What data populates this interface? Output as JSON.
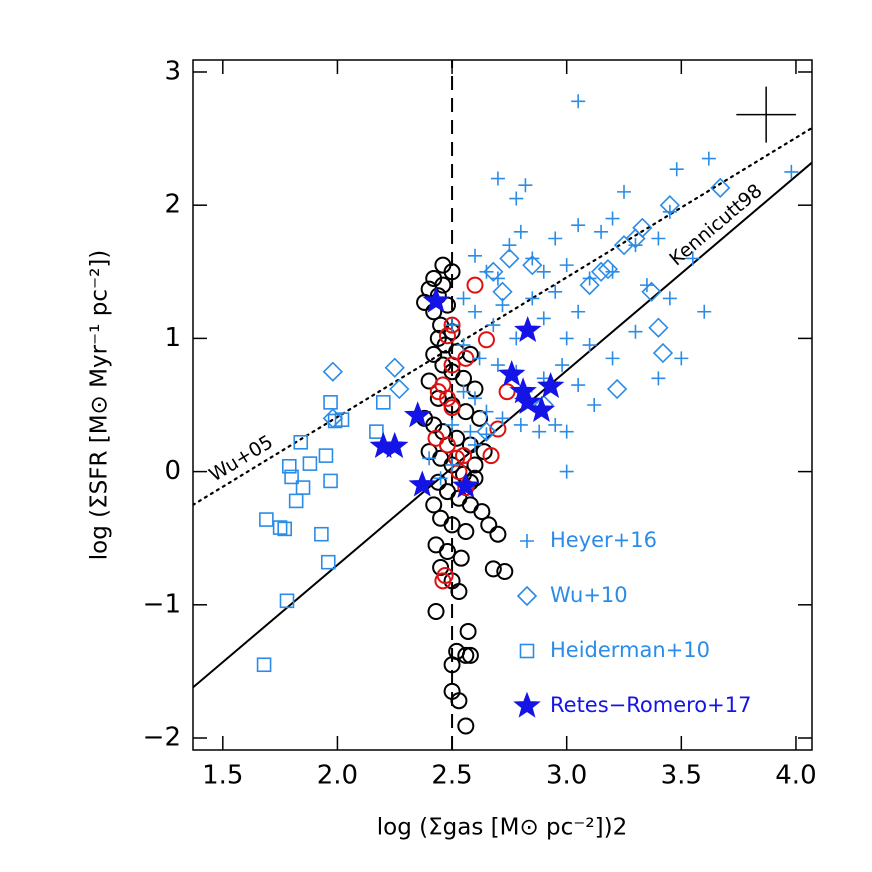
{
  "chart_data": {
    "type": "scatter",
    "x_label": "log (Σgas  [M⊙ pc⁻²])2",
    "y_label": "log (ΣSFR  [M⊙  Myr⁻¹  pc⁻²])",
    "xlim": [
      1.37,
      4.07
    ],
    "ylim": [
      -2.09,
      3.09
    ],
    "xticks": [
      {
        "value": 1.5,
        "label": "1.5"
      },
      {
        "value": 2.0,
        "label": "2.0"
      },
      {
        "value": 2.5,
        "label": "2.5"
      },
      {
        "value": 3.0,
        "label": "3.0"
      },
      {
        "value": 3.5,
        "label": "3.5"
      },
      {
        "value": 4.0,
        "label": "4.0"
      }
    ],
    "yticks": [
      {
        "value": -2,
        "label": "−2"
      },
      {
        "value": -1,
        "label": "−1"
      },
      0,
      1,
      2,
      3
    ],
    "legend": "lower right",
    "series": [
      {
        "name": "Heyer+16",
        "marker": "plus",
        "color": "#2a8ce8",
        "x": [
          3.05,
          2.7,
          2.78,
          2.82,
          3.48,
          3.62,
          3.98,
          3.25,
          3.2,
          3.45,
          3.05,
          3.15,
          3.4,
          3.55,
          3.3,
          2.6,
          2.65,
          2.7,
          2.75,
          2.8,
          2.85,
          2.9,
          2.95,
          3.0,
          3.1,
          3.2,
          3.35,
          3.45,
          3.6,
          2.55,
          2.6,
          2.68,
          2.72,
          2.78,
          2.85,
          2.9,
          2.95,
          3.0,
          3.05,
          3.1,
          3.2,
          3.3,
          3.4,
          3.5,
          2.5,
          2.55,
          2.62,
          2.7,
          2.78,
          2.82,
          2.9,
          2.98,
          3.05,
          3.12,
          2.55,
          2.6,
          2.65,
          2.72,
          2.8,
          2.88,
          2.95,
          3.0,
          2.5,
          2.58,
          2.65,
          2.4,
          2.5,
          2.6,
          2.45,
          3.0,
          2.55
        ],
        "values": [
          2.78,
          2.2,
          2.05,
          2.15,
          2.27,
          2.35,
          2.25,
          2.1,
          1.9,
          1.95,
          1.85,
          1.8,
          1.75,
          1.6,
          1.7,
          1.62,
          1.5,
          1.45,
          1.7,
          1.8,
          1.6,
          1.5,
          1.75,
          1.55,
          1.45,
          1.5,
          1.4,
          1.3,
          1.2,
          1.3,
          1.2,
          1.1,
          1.25,
          1.0,
          1.3,
          1.15,
          1.35,
          1.0,
          1.2,
          0.95,
          0.85,
          1.05,
          0.7,
          0.85,
          1.1,
          0.95,
          0.85,
          0.8,
          0.75,
          0.6,
          0.7,
          0.8,
          0.65,
          0.5,
          0.6,
          0.55,
          0.45,
          0.4,
          0.35,
          0.3,
          0.35,
          0.3,
          0.35,
          0.3,
          0.28,
          0.1,
          0.05,
          0.2,
          -0.05,
          0.0,
          -0.1
        ]
      },
      {
        "name": "Wu+10",
        "marker": "diamond",
        "color": "#2a8ce8",
        "x": [
          1.98,
          2.25,
          2.27,
          1.98,
          2.68,
          2.72,
          2.75,
          2.85,
          3.1,
          3.18,
          3.25,
          3.3,
          3.33,
          3.45,
          3.67,
          3.4,
          3.42,
          3.37,
          3.22,
          3.15,
          2.65,
          2.9
        ],
        "values": [
          0.75,
          0.78,
          0.62,
          0.4,
          1.5,
          1.35,
          1.6,
          1.55,
          1.4,
          1.52,
          1.7,
          1.75,
          1.83,
          2.0,
          2.13,
          1.08,
          0.89,
          1.35,
          0.62,
          1.5,
          0.3,
          0.5
        ]
      },
      {
        "name": "Heiderman+10",
        "marker": "square",
        "color": "#2a8ce8",
        "x": [
          1.68,
          1.69,
          1.75,
          1.77,
          1.78,
          1.79,
          1.8,
          1.82,
          1.84,
          1.85,
          1.88,
          1.93,
          1.95,
          1.96,
          1.97,
          1.97,
          1.99,
          2.02,
          2.17,
          2.2
        ],
        "values": [
          -1.45,
          -0.36,
          -0.42,
          -0.43,
          -0.97,
          0.04,
          -0.04,
          -0.22,
          0.22,
          -0.12,
          0.06,
          -0.47,
          0.12,
          -0.68,
          -0.07,
          0.52,
          0.38,
          0.39,
          0.3,
          0.52
        ]
      },
      {
        "name": "Retes−Romero+17",
        "marker": "star",
        "color": "#1414e6",
        "x": [
          2.43,
          2.35,
          2.2,
          2.25,
          2.37,
          2.56,
          2.83,
          2.76,
          2.81,
          2.83,
          2.93,
          2.89
        ],
        "values": [
          1.28,
          0.42,
          0.19,
          0.19,
          -0.1,
          -0.11,
          1.06,
          0.73,
          0.6,
          0.52,
          0.64,
          0.46
        ]
      },
      {
        "marker": "circle",
        "color": "#000000",
        "x": [
          2.46,
          2.5,
          2.42,
          2.46,
          2.4,
          2.44,
          2.38,
          2.48,
          2.42,
          2.45,
          2.5,
          2.44,
          2.47,
          2.52,
          2.58,
          2.42,
          2.46,
          2.5,
          2.55,
          2.6,
          2.4,
          2.44,
          2.5,
          2.56,
          2.62,
          2.38,
          2.42,
          2.46,
          2.52,
          2.58,
          2.64,
          2.4,
          2.45,
          2.5,
          2.55,
          2.6,
          2.44,
          2.48,
          2.53,
          2.58,
          2.63,
          2.42,
          2.45,
          2.5,
          2.56,
          2.66,
          2.7,
          2.43,
          2.48,
          2.54,
          2.68,
          2.73,
          2.45,
          2.5,
          2.53,
          2.43,
          2.57,
          2.52,
          2.56,
          2.5,
          2.5,
          2.53,
          2.56,
          2.58,
          2.6,
          2.58
        ],
        "values": [
          1.55,
          1.5,
          1.45,
          1.4,
          1.37,
          1.32,
          1.27,
          1.25,
          1.2,
          1.1,
          1.05,
          1.0,
          0.95,
          0.9,
          0.88,
          0.88,
          0.8,
          0.75,
          0.7,
          0.62,
          0.68,
          0.55,
          0.5,
          0.45,
          0.4,
          0.4,
          0.35,
          0.3,
          0.25,
          0.2,
          0.15,
          0.15,
          0.1,
          0.05,
          -0.02,
          -0.05,
          -0.08,
          -0.15,
          -0.2,
          -0.25,
          -0.3,
          -0.25,
          -0.35,
          -0.4,
          -0.45,
          -0.4,
          -0.47,
          -0.55,
          -0.6,
          -0.65,
          -0.73,
          -0.75,
          -0.72,
          -0.82,
          -0.9,
          -1.05,
          -1.2,
          -1.35,
          -1.38,
          -1.45,
          -1.65,
          -1.72,
          -1.91,
          -1.38,
          0.05,
          -0.08
        ]
      },
      {
        "marker": "circle",
        "color": "#e01010",
        "x": [
          2.6,
          2.65,
          2.5,
          2.48,
          2.56,
          2.5,
          2.44,
          2.48,
          2.5,
          2.46,
          2.74,
          2.7,
          2.43,
          2.48,
          2.52,
          2.55,
          2.53,
          2.67,
          2.47,
          2.56,
          2.46
        ],
        "values": [
          1.4,
          0.99,
          1.1,
          1.02,
          0.85,
          0.8,
          0.6,
          0.55,
          0.48,
          0.65,
          0.6,
          0.32,
          0.25,
          0.2,
          0.1,
          0.12,
          0.0,
          0.12,
          -0.78,
          -0.12,
          -0.82
        ]
      }
    ],
    "lines": [
      {
        "name": "Kennicutt98",
        "style": "solid",
        "x": [
          1.37,
          4.07
        ],
        "y": [
          -1.62,
          2.32
        ]
      },
      {
        "name": "Wu+05",
        "style": "dotted",
        "x": [
          1.37,
          4.07
        ],
        "y": [
          -0.25,
          2.58
        ]
      },
      {
        "style": "dashed",
        "x": [
          2.5,
          2.5
        ],
        "y": [
          -2.09,
          3.09
        ]
      }
    ],
    "error_bar": {
      "x": 3.87,
      "y": 2.68,
      "xerr": 0.13,
      "yerr": 0.21
    }
  }
}
